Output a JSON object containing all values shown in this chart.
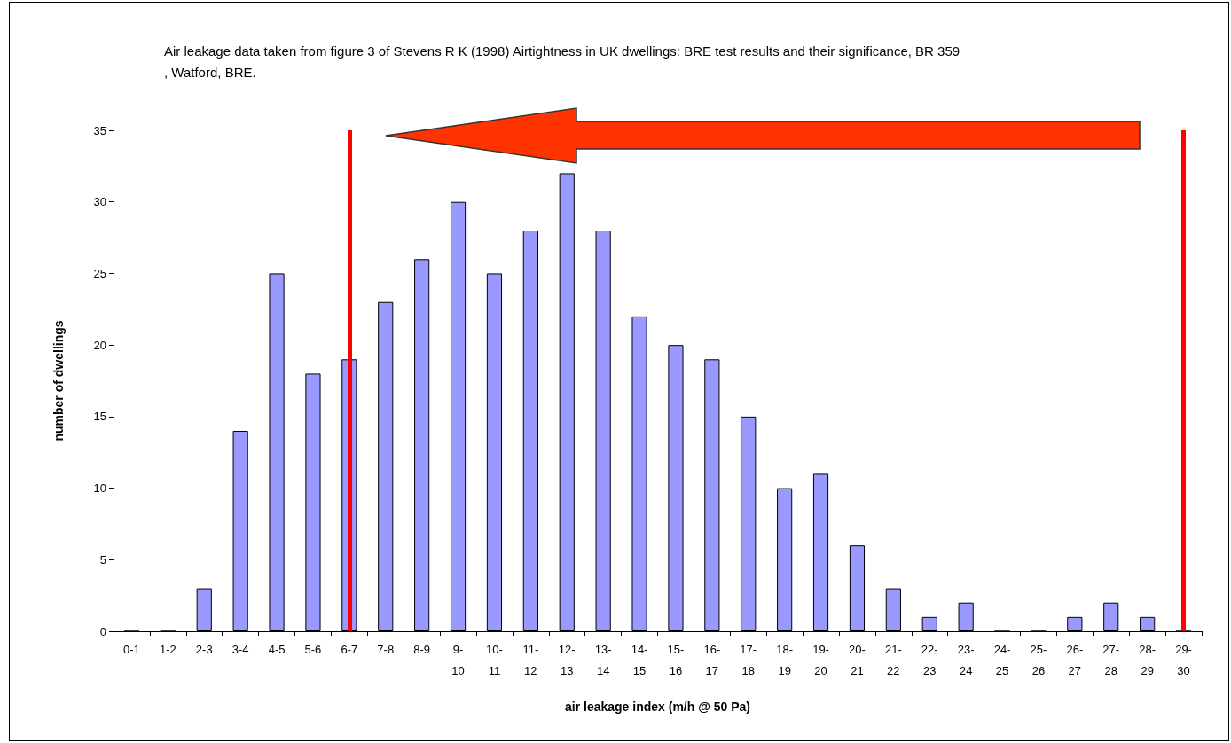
{
  "chart_data": {
    "type": "bar",
    "title": "Air leakage data taken from figure 3 of Stevens R K (1998) Airtightness in UK dwellings: BRE test results and their significance, BR 359, Watford, BRE.",
    "xlabel": "air leakage index (m/h @ 50 Pa)",
    "ylabel": "number of dwellings",
    "categories": [
      "0-1",
      "1-2",
      "2-3",
      "3-4",
      "4-5",
      "5-6",
      "6-7",
      "7-8",
      "8-9",
      "9-10",
      "10-11",
      "11-12",
      "12-13",
      "13-14",
      "14-15",
      "15-16",
      "16-17",
      "17-18",
      "18-19",
      "19-20",
      "20-21",
      "21-22",
      "22-23",
      "23-24",
      "24-25",
      "25-26",
      "26-27",
      "27-28",
      "28-29",
      "29-30"
    ],
    "values": [
      0,
      0,
      3,
      14,
      25,
      18,
      19,
      23,
      26,
      30,
      25,
      28,
      32,
      28,
      22,
      20,
      19,
      15,
      10,
      11,
      6,
      3,
      1,
      2,
      0,
      0,
      1,
      2,
      1,
      0
    ],
    "color": "#9999ff",
    "ylim": [
      0,
      35
    ],
    "yticks": [
      0,
      5,
      10,
      15,
      20,
      25,
      30,
      35
    ],
    "grid": false,
    "ref_lines": [
      {
        "axis": "x",
        "value": "6-7",
        "color": "#ff0000"
      },
      {
        "axis": "x",
        "value": "29-30",
        "color": "#ff0000"
      }
    ]
  }
}
